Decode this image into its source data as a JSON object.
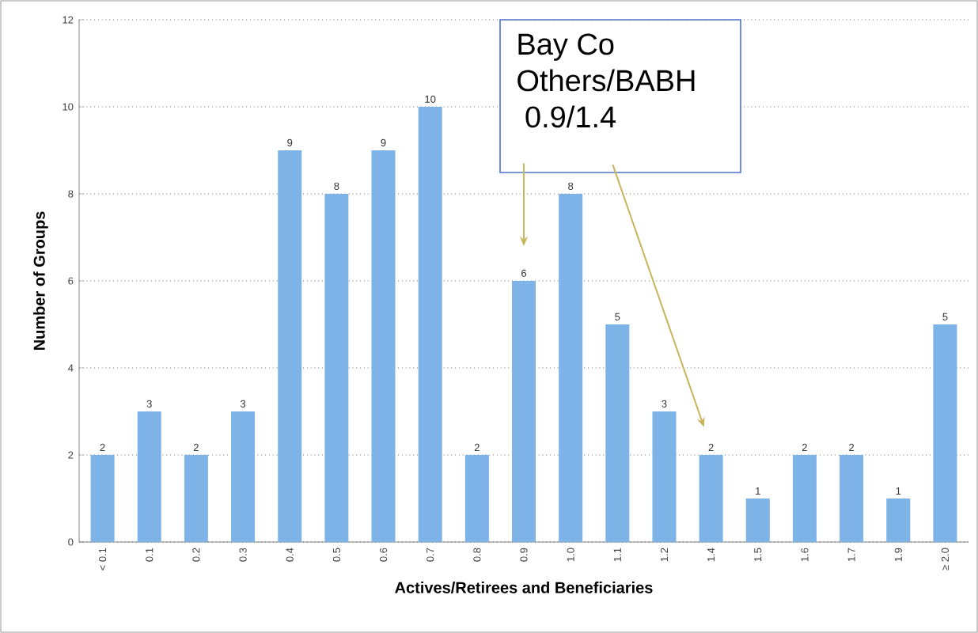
{
  "chart_data": {
    "type": "bar",
    "xlabel": "Actives/Retirees and Beneficiaries",
    "ylabel": "Number of Groups",
    "categories": [
      "< 0.1",
      "0.1",
      "0.2",
      "0.3",
      "0.4",
      "0.5",
      "0.6",
      "0.7",
      "0.8",
      "0.9",
      "1.0",
      "1.1",
      "1.2",
      "1.4",
      "1.5",
      "1.6",
      "1.7",
      "1.9",
      "≥ 2.0"
    ],
    "values": [
      2,
      3,
      2,
      3,
      9,
      8,
      9,
      10,
      2,
      6,
      8,
      5,
      3,
      2,
      1,
      2,
      2,
      1,
      5
    ],
    "color": "#7eb3e8",
    "ylim": [
      0,
      12
    ],
    "yticks": [
      0,
      2,
      4,
      6,
      8,
      10,
      12
    ],
    "grid": "y",
    "data_labels": true,
    "annotations": [
      "Bay Co",
      "Others/BABH",
      " 0.9/1.4"
    ]
  }
}
